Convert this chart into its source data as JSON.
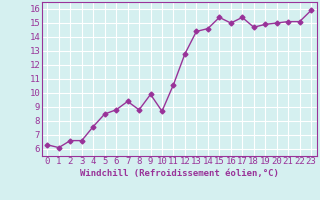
{
  "x": [
    0,
    1,
    2,
    3,
    4,
    5,
    6,
    7,
    8,
    9,
    10,
    11,
    12,
    13,
    14,
    15,
    16,
    17,
    18,
    19,
    20,
    21,
    22,
    23
  ],
  "y": [
    6.3,
    6.1,
    6.6,
    6.6,
    7.6,
    8.5,
    8.8,
    9.4,
    8.8,
    9.9,
    8.7,
    10.6,
    12.8,
    14.4,
    14.6,
    15.4,
    15.0,
    15.4,
    14.7,
    14.9,
    15.0,
    15.1,
    15.1,
    15.9
  ],
  "line_color": "#993399",
  "marker": "D",
  "marker_size": 2.5,
  "line_width": 1.0,
  "bg_color": "#d5f0f0",
  "grid_color": "#b0d8d8",
  "xlabel": "Windchill (Refroidissement éolien,°C)",
  "xlabel_color": "#993399",
  "ylabel_ticks": [
    6,
    7,
    8,
    9,
    10,
    11,
    12,
    13,
    14,
    15,
    16
  ],
  "xlim": [
    -0.5,
    23.5
  ],
  "ylim": [
    5.5,
    16.5
  ],
  "tick_label_color": "#993399",
  "axis_label_fontsize": 6.5,
  "tick_fontsize": 6.5
}
